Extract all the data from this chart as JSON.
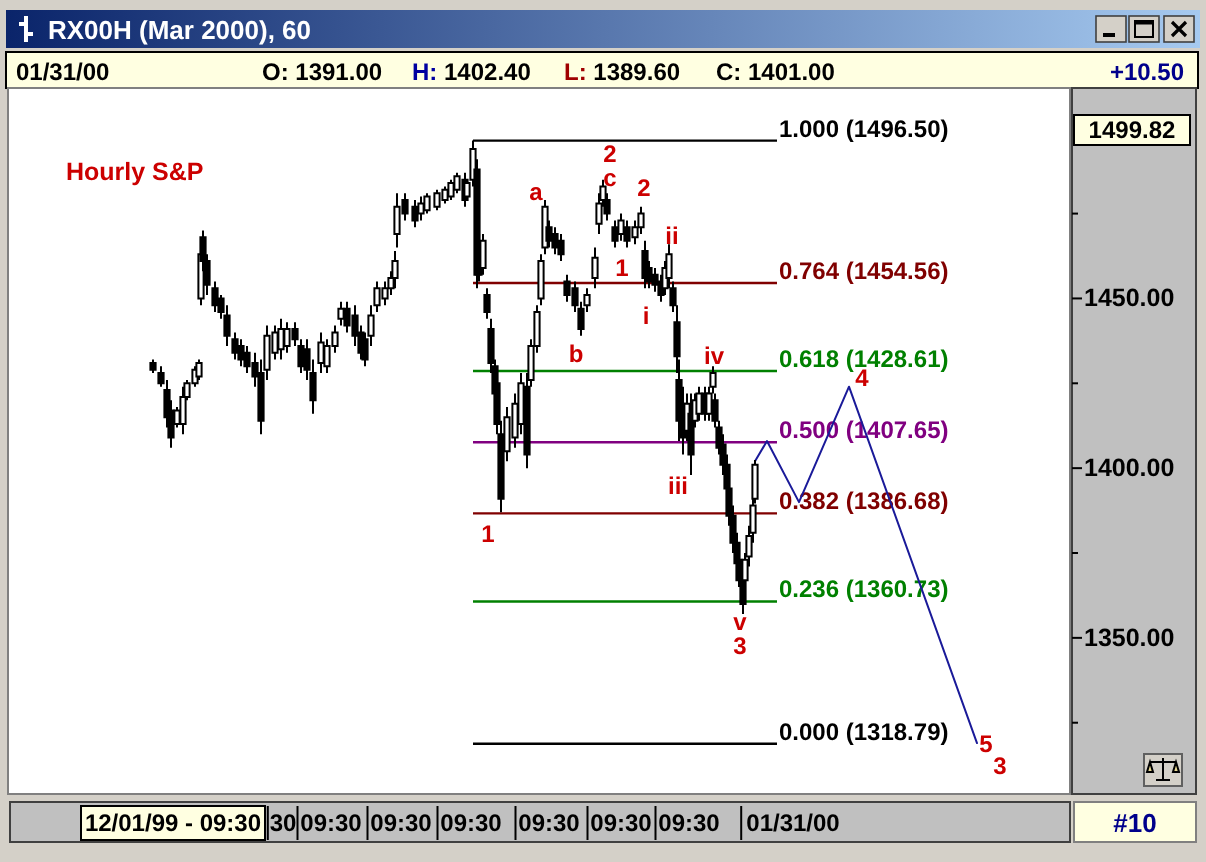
{
  "chart_data": {
    "type": "candlestick",
    "title": "RX00H (Mar 2000), 60",
    "subtitle": "Hourly S&P",
    "color": "#000000",
    "categories": [
      null,
      null,
      null,
      null,
      null,
      null,
      null,
      null,
      null,
      null,
      null,
      null,
      null,
      null,
      null,
      null,
      null,
      null,
      null,
      null,
      null,
      null,
      null,
      null,
      null,
      null,
      null,
      null,
      null,
      null,
      null,
      null,
      null,
      null,
      null,
      null,
      null,
      null,
      null,
      null,
      null,
      null,
      null,
      null,
      null,
      null,
      null,
      null,
      null,
      null,
      null,
      null,
      null,
      null,
      null,
      null,
      null,
      null,
      null,
      null,
      null,
      null,
      null,
      null,
      null,
      null,
      null,
      null,
      null,
      null,
      null,
      null,
      null,
      null,
      null,
      null,
      null,
      null,
      null,
      null,
      null,
      "12/01/99 - 09:30",
      null,
      null,
      null,
      null,
      null,
      null,
      null,
      null,
      null,
      null,
      null,
      null,
      null,
      null,
      null,
      null,
      null,
      null,
      null,
      null,
      null,
      null,
      null,
      null,
      null,
      null,
      null,
      null,
      null,
      null,
      null,
      null,
      null,
      null,
      null,
      null,
      null,
      null,
      null,
      null,
      null,
      null,
      null,
      null,
      null,
      null,
      null,
      null,
      null,
      null,
      null,
      null,
      null,
      null,
      "30",
      null,
      null,
      null,
      null,
      null,
      null,
      null,
      null,
      null,
      null,
      null,
      null,
      null,
      null,
      null,
      null,
      null,
      null,
      null,
      null,
      null,
      null,
      null,
      "09:30",
      null,
      null,
      null,
      null,
      null,
      null,
      null,
      null,
      null,
      null,
      null,
      null,
      null,
      null,
      null,
      null,
      null,
      null,
      null,
      null,
      null,
      null,
      null,
      null,
      null,
      null,
      null,
      null,
      null,
      null,
      null,
      null,
      null,
      null,
      "09:30",
      null,
      null,
      null,
      null,
      null,
      null,
      null,
      null,
      null,
      null,
      null,
      null,
      null,
      null,
      null,
      null,
      null,
      null,
      null,
      null,
      null,
      null,
      null,
      null,
      null,
      null,
      null,
      null,
      null,
      null,
      null,
      null,
      null,
      null,
      "09:30",
      null,
      null,
      null,
      null,
      null,
      null,
      null,
      null,
      null,
      null,
      null,
      null,
      null,
      null,
      null,
      null,
      null,
      null,
      null,
      null,
      null,
      null,
      null,
      null,
      null,
      null,
      null,
      null,
      null,
      null,
      null,
      null,
      null,
      null,
      null,
      null,
      null,
      null,
      "09:30",
      null,
      null,
      null,
      null,
      null,
      null,
      null,
      null,
      null,
      null,
      null,
      null,
      null,
      null,
      null,
      null,
      null,
      null,
      null,
      null,
      null,
      null,
      null,
      null,
      null,
      null,
      null,
      null,
      null,
      null,
      null,
      null,
      null,
      null,
      null,
      "09:30",
      null,
      null,
      null,
      null,
      null,
      null,
      null,
      null,
      null,
      null,
      null,
      null,
      null,
      null,
      null,
      null,
      null,
      null,
      null,
      null,
      null,
      null,
      null,
      null,
      null,
      null,
      null,
      null,
      null,
      null,
      null,
      null,
      null,
      "09:30",
      null,
      null,
      null,
      null,
      null,
      null,
      null,
      null,
      null,
      null,
      null,
      null,
      null,
      null,
      null,
      null,
      null,
      null,
      null,
      null,
      null,
      null,
      null,
      null,
      null,
      null,
      null,
      null,
      null,
      null,
      null,
      null,
      null,
      null,
      null,
      null,
      null,
      null,
      null,
      null,
      null,
      null,
      null,
      null,
      null,
      null,
      null,
      null,
      null,
      null,
      null,
      "01/31/00",
      null,
      null,
      null,
      null,
      null,
      null,
      null,
      null,
      null,
      null,
      null,
      null,
      null,
      null,
      null,
      null,
      null,
      null,
      null,
      null,
      null,
      null,
      null,
      null,
      null,
      null,
      null,
      null,
      null,
      null,
      null,
      null,
      null,
      null,
      null,
      null,
      null,
      null,
      null,
      null,
      null,
      null,
      null,
      null,
      null,
      null,
      null,
      null,
      null,
      null,
      null,
      null,
      null,
      null,
      null,
      null,
      null,
      null,
      null,
      null,
      null,
      null,
      null,
      null,
      null,
      null,
      null,
      null,
      null,
      null,
      null,
      null,
      null,
      null,
      null,
      null,
      null,
      null,
      null,
      null,
      null,
      null,
      null,
      null,
      null,
      null,
      null,
      null,
      null,
      null,
      null,
      null,
      null,
      null,
      null,
      null,
      null,
      null,
      null,
      null,
      null,
      null,
      null,
      null,
      null,
      null,
      null,
      null,
      null,
      null,
      null,
      null,
      null,
      null,
      null,
      null,
      null,
      null,
      null,
      null,
      null,
      null,
      null,
      null,
      null,
      null,
      null,
      null,
      null,
      null,
      null,
      null,
      null,
      null,
      null,
      null,
      null,
      null
    ],
    "ohlc": [
      null,
      null,
      null,
      null,
      null,
      null,
      null,
      null,
      null,
      null,
      null,
      null,
      null,
      null,
      null,
      null,
      null,
      null,
      null,
      null,
      null,
      null,
      null,
      null,
      null,
      null,
      null,
      null,
      null,
      null,
      null,
      null,
      null,
      null,
      null,
      null,
      null,
      null,
      null,
      null,
      null,
      null,
      null,
      null,
      null,
      null,
      null,
      null,
      null,
      null,
      null,
      null,
      null,
      null,
      null,
      null,
      null,
      null,
      null,
      null,
      null,
      null,
      null,
      null,
      null,
      null,
      null,
      null,
      null,
      null,
      null,
      [
        1431,
        1432,
        1428,
        1429
      ],
      null,
      null,
      null,
      [
        1428,
        1430,
        1424,
        1425
      ],
      null,
      null,
      [
        1423,
        1426,
        1412,
        1415
      ],
      null,
      [
        1417,
        1420,
        1406,
        1409
      ],
      null,
      null,
      [
        1413,
        1418,
        1412,
        1417
      ],
      null,
      null,
      [
        1413,
        1424,
        1410,
        1421
      ],
      null,
      [
        1421,
        1426,
        1420,
        1425
      ],
      null,
      null,
      null,
      [
        1425,
        1430,
        1424,
        1429
      ],
      null,
      [
        1427,
        1432,
        1426,
        1431
      ],
      [
        1450,
        1465,
        1448,
        1463
      ],
      [
        1468,
        1470,
        1458,
        1461
      ],
      null,
      [
        1461,
        1463,
        1451,
        1454
      ],
      null,
      null,
      null,
      [
        1453,
        1455,
        1446,
        1448
      ],
      null,
      null,
      [
        1450,
        1451,
        1444,
        1446
      ],
      null,
      null,
      [
        1445,
        1448,
        1436,
        1439
      ],
      null,
      null,
      null,
      [
        1438,
        1440,
        1432,
        1434
      ],
      null,
      null,
      [
        1436,
        1438,
        1430,
        1432
      ],
      null,
      null,
      [
        1434,
        1436,
        1428,
        1430
      ],
      null,
      null,
      null,
      [
        1431,
        1434,
        1424,
        1427
      ],
      null,
      null,
      [
        1428,
        1432,
        1410,
        1414
      ],
      null,
      null,
      [
        1429,
        1442,
        1426,
        1439
      ],
      null,
      null,
      null,
      [
        1434,
        1442,
        1432,
        1440
      ],
      null,
      null,
      [
        1435,
        1444,
        1432,
        1441
      ],
      null,
      null,
      [
        1436,
        1443,
        1434,
        1441
      ],
      null,
      null,
      null,
      [
        1441,
        1443,
        1436,
        1438
      ],
      null,
      null,
      [
        1436,
        1438,
        1428,
        1430
      ],
      null,
      null,
      [
        1435,
        1438,
        1426,
        1429
      ],
      null,
      null,
      [
        1428,
        1432,
        1416,
        1420
      ],
      null,
      null,
      null,
      [
        1431,
        1440,
        1428,
        1437
      ],
      null,
      null,
      [
        1430,
        1438,
        1428,
        1436
      ],
      null,
      null,
      null,
      [
        1436,
        1442,
        1434,
        1440
      ],
      null,
      null,
      [
        1444,
        1449,
        1442,
        1447
      ],
      null,
      null,
      [
        1447,
        1449,
        1440,
        1442
      ],
      null,
      null,
      null,
      [
        1445,
        1448,
        1436,
        1439
      ],
      null,
      null,
      [
        1440,
        1442,
        1432,
        1434
      ],
      null,
      [
        1438,
        1440,
        1430,
        1432
      ],
      null,
      null,
      [
        1439,
        1448,
        1436,
        1445
      ],
      null,
      null,
      [
        1448,
        1455,
        1446,
        1453
      ],
      null,
      null,
      null,
      [
        1450,
        1455,
        1448,
        1453
      ],
      null,
      null,
      [
        1453,
        1458,
        1451,
        1456
      ],
      null,
      [
        1456,
        1464,
        1453,
        1461
      ],
      [
        1469,
        1481,
        1465,
        1477
      ],
      null,
      null,
      null,
      [
        1479,
        1481,
        1473,
        1475
      ],
      null,
      null,
      null,
      null,
      [
        1477,
        1479,
        1471,
        1473
      ],
      null,
      null,
      [
        1475,
        1480,
        1473,
        1478
      ],
      null,
      null,
      [
        1476,
        1481,
        1475,
        1480
      ],
      null,
      null,
      null,
      null,
      [
        1477,
        1482,
        1476,
        1481
      ],
      null,
      null,
      null,
      [
        1479,
        1483,
        1478,
        1482
      ],
      null,
      null,
      [
        1480,
        1485,
        1479,
        1484
      ],
      null,
      null,
      [
        1482,
        1487,
        1481,
        1486
      ],
      null,
      null,
      null,
      [
        1485,
        1487,
        1477,
        1479
      ],
      [
        1480,
        1485,
        1479,
        1484
      ],
      null,
      null,
      [
        1485,
        1496.5,
        1483,
        1494
      ],
      null,
      [
        1488,
        1491,
        1453,
        1457
      ],
      [
        1462,
        1465,
        1455,
        1457
      ],
      null,
      [
        1459,
        1469,
        1457,
        1467
      ],
      null,
      [
        1451,
        1453,
        1444,
        1446
      ],
      null,
      [
        1441,
        1444,
        1428,
        1431
      ],
      null,
      [
        1430,
        1432,
        1420,
        1422
      ],
      [
        1425,
        1428,
        1410,
        1413
      ],
      null,
      [
        1410,
        1414,
        1387,
        1391
      ],
      null,
      null,
      [
        1405,
        1418,
        1402,
        1415
      ],
      null,
      null,
      null,
      [
        1409,
        1422,
        1406,
        1419
      ],
      null,
      null,
      [
        1413,
        1428,
        1410,
        1425
      ],
      null,
      null,
      [
        1424,
        1428,
        1400,
        1404
      ],
      null,
      [
        1426,
        1438,
        1424,
        1436
      ],
      null,
      null,
      [
        1436,
        1448,
        1434,
        1446
      ],
      null,
      [
        1450,
        1463,
        1448,
        1461
      ],
      null,
      [
        1465,
        1479,
        1463,
        1477
      ],
      null,
      [
        1471,
        1473,
        1465,
        1467
      ],
      null,
      null,
      [
        1469,
        1471,
        1463,
        1465
      ],
      null,
      null,
      [
        1467,
        1469,
        1461,
        1463
      ],
      null,
      null,
      [
        1455,
        1457,
        1449,
        1451
      ],
      null,
      null,
      null,
      [
        1453,
        1455,
        1446,
        1448
      ],
      null,
      null,
      [
        1447,
        1449,
        1439,
        1441
      ],
      null,
      null,
      [
        1448,
        1453,
        1446,
        1451
      ],
      null,
      null,
      null,
      [
        1456,
        1465,
        1453,
        1462
      ],
      null,
      [
        1472,
        1481,
        1469,
        1478
      ],
      null,
      [
        1479,
        1485,
        1477,
        1483
      ],
      null,
      [
        1479,
        1481,
        1473,
        1475
      ],
      null,
      null,
      null,
      [
        1471,
        1473,
        1465,
        1467
      ],
      null,
      null,
      [
        1469,
        1475,
        1467,
        1473
      ],
      null,
      null,
      [
        1471,
        1473,
        1465,
        1467
      ],
      null,
      null,
      null,
      [
        1468,
        1473,
        1466,
        1471
      ],
      null,
      null,
      [
        1471,
        1477,
        1469,
        1475
      ],
      null,
      [
        1464,
        1467,
        1453,
        1456
      ],
      null,
      [
        1459,
        1461,
        1453,
        1455
      ],
      null,
      null,
      [
        1457,
        1459,
        1452,
        1454
      ],
      null,
      null,
      [
        1455,
        1457,
        1449,
        1451
      ],
      null,
      [
        1453,
        1461,
        1451,
        1459
      ],
      null,
      [
        1456,
        1466,
        1453,
        1463
      ],
      null,
      [
        1453,
        1455,
        1446,
        1448
      ],
      null,
      [
        1443,
        1448,
        1428,
        1433
      ],
      [
        1426,
        1432,
        1408,
        1414
      ],
      null,
      [
        1419,
        1424,
        1404,
        1409
      ],
      null,
      [
        1411,
        1422,
        1408,
        1419
      ],
      null,
      [
        1416,
        1422,
        1398,
        1404
      ],
      null,
      [
        1414,
        1422,
        1412,
        1420
      ],
      null,
      [
        1416,
        1424,
        1414,
        1422
      ],
      null,
      null,
      [
        1422,
        1424,
        1414,
        1416
      ],
      null,
      [
        1416,
        1424,
        1414,
        1422
      ],
      null,
      [
        1424,
        1430,
        1422,
        1428
      ],
      [
        1420,
        1422,
        1412,
        1414
      ],
      null,
      [
        1412,
        1414,
        1404,
        1406
      ],
      null,
      [
        1407,
        1410,
        1398,
        1401
      ],
      null,
      [
        1401,
        1404,
        1391,
        1394
      ],
      [
        1394,
        1397,
        1383,
        1386
      ],
      null,
      [
        1386,
        1389,
        1375,
        1378
      ],
      null,
      [
        1378,
        1381,
        1369,
        1372
      ],
      [
        1373,
        1375,
        1365,
        1367
      ],
      null,
      [
        1368,
        1371,
        1357,
        1360
      ],
      [
        1367,
        1375,
        1365,
        1373
      ],
      null,
      [
        1374,
        1383,
        1371,
        1380
      ],
      null,
      [
        1381,
        1392,
        1378,
        1389
      ],
      [
        1391,
        1402.4,
        1389.6,
        1401
      ],
      null,
      null,
      null,
      null,
      null,
      null,
      null,
      null,
      null,
      null,
      null,
      null,
      null,
      null,
      null,
      null,
      null,
      null,
      null,
      null,
      null,
      null,
      null,
      null,
      null,
      null,
      null,
      null,
      null,
      null,
      null,
      null,
      null,
      null,
      null,
      null,
      null,
      null,
      null,
      null,
      null,
      null,
      null,
      null,
      null,
      null,
      null,
      null,
      null,
      null,
      null,
      null,
      null,
      null,
      null,
      null,
      null,
      null,
      null,
      null,
      null,
      null,
      null,
      null,
      null,
      null,
      null,
      null,
      null,
      null,
      null,
      null,
      null,
      null,
      null,
      null,
      null,
      null,
      null,
      null,
      null,
      null,
      null,
      null,
      null,
      null,
      null,
      null,
      null,
      null,
      null,
      null,
      null,
      null,
      null,
      null,
      null,
      null,
      null,
      null,
      null,
      null,
      null,
      null,
      null,
      null,
      null,
      null,
      null,
      null,
      null,
      null,
      null,
      null,
      null,
      null,
      null,
      null,
      null,
      null,
      null,
      null,
      null,
      null,
      null,
      null,
      null,
      null,
      null,
      null,
      null,
      null,
      null,
      null,
      null,
      null,
      null,
      null,
      null,
      null,
      null,
      null,
      null,
      null,
      null,
      null,
      null,
      null,
      null,
      null,
      null,
      null,
      null,
      null,
      null,
      null,
      null
    ],
    "series": [
      {
        "type": "line",
        "color": "#1a1a99",
        "values": [
          null,
          null,
          null,
          null,
          null,
          null,
          null,
          null,
          null,
          null,
          null,
          null,
          null,
          null,
          null,
          null,
          null,
          null,
          null,
          null,
          null,
          null,
          null,
          null,
          null,
          null,
          null,
          null,
          null,
          null,
          null,
          null,
          null,
          null,
          null,
          null,
          null,
          null,
          null,
          null,
          null,
          null,
          null,
          null,
          null,
          null,
          null,
          null,
          null,
          null,
          null,
          null,
          null,
          null,
          null,
          null,
          null,
          null,
          null,
          null,
          null,
          null,
          null,
          null,
          null,
          null,
          null,
          null,
          null,
          null,
          null,
          null,
          null,
          null,
          null,
          null,
          null,
          null,
          null,
          null,
          null,
          null,
          null,
          null,
          null,
          null,
          null,
          null,
          null,
          null,
          null,
          null,
          null,
          null,
          null,
          null,
          null,
          null,
          null,
          null,
          null,
          null,
          null,
          null,
          null,
          null,
          null,
          null,
          null,
          null,
          null,
          null,
          null,
          null,
          null,
          null,
          null,
          null,
          null,
          null,
          null,
          null,
          null,
          null,
          null,
          null,
          null,
          null,
          null,
          null,
          null,
          null,
          null,
          null,
          null,
          null,
          null,
          null,
          null,
          null,
          null,
          null,
          null,
          null,
          null,
          null,
          null,
          null,
          null,
          null,
          null,
          null,
          null,
          null,
          null,
          null,
          null,
          null,
          null,
          null,
          null,
          null,
          null,
          null,
          null,
          null,
          null,
          null,
          null,
          null,
          null,
          null,
          null,
          null,
          null,
          null,
          null,
          null,
          null,
          null,
          null,
          null,
          null,
          null,
          null,
          null,
          null,
          null,
          null,
          null,
          null,
          null,
          null,
          null,
          null,
          null,
          null,
          null,
          null,
          null,
          null,
          null,
          null,
          null,
          null,
          null,
          null,
          null,
          null,
          null,
          null,
          null,
          null,
          null,
          null,
          null,
          null,
          null,
          null,
          null,
          null,
          null,
          null,
          null,
          null,
          null,
          null,
          null,
          null,
          null,
          null,
          null,
          null,
          null,
          null,
          null,
          null,
          null,
          null,
          null,
          null,
          null,
          null,
          null,
          null,
          null,
          null,
          null,
          null,
          null,
          null,
          null,
          null,
          null,
          null,
          null,
          null,
          null,
          null,
          null,
          null,
          null,
          null,
          null,
          null,
          null,
          null,
          null,
          null,
          null,
          null,
          null,
          null,
          null,
          null,
          null,
          null,
          null,
          null,
          null,
          null,
          null,
          null,
          null,
          null,
          null,
          null,
          null,
          null,
          null,
          null,
          null,
          null,
          null,
          null,
          null,
          null,
          null,
          null,
          null,
          null,
          null,
          null,
          null,
          null,
          null,
          null,
          null,
          null,
          null,
          null,
          null,
          null,
          null,
          null,
          null,
          null,
          null,
          null,
          null,
          null,
          null,
          null,
          null,
          null,
          null,
          null,
          null,
          null,
          null,
          null,
          null,
          null,
          null,
          null,
          null,
          null,
          null,
          null,
          null,
          null,
          null,
          null,
          null,
          null,
          null,
          null,
          null,
          null,
          null,
          null,
          null,
          null,
          null,
          null,
          null,
          null,
          null,
          null,
          null,
          null,
          null,
          null,
          null,
          null,
          null,
          null,
          null,
          null,
          null,
          null,
          null,
          1402,
          null,
          null,
          null,
          null,
          null,
          1408,
          null,
          null,
          null,
          null,
          null,
          null,
          null,
          null,
          null,
          null,
          null,
          null,
          null,
          null,
          null,
          1390,
          null,
          null,
          null,
          null,
          null,
          null,
          null,
          null,
          null,
          null,
          null,
          null,
          null,
          null,
          null,
          null,
          null,
          null,
          null,
          null,
          null,
          null,
          null,
          null,
          1424,
          null,
          null,
          null,
          null,
          null,
          null,
          null,
          null,
          null,
          null,
          null,
          null,
          null,
          null,
          null,
          null,
          null,
          null,
          null,
          null,
          null,
          null,
          null,
          null,
          null,
          null,
          null,
          null,
          null,
          null,
          null,
          null,
          null,
          null,
          null,
          null,
          null,
          null,
          null,
          null,
          null,
          null,
          null,
          null,
          null,
          null,
          null,
          null,
          null,
          null,
          null,
          null,
          null,
          null,
          null,
          null,
          null,
          null,
          null,
          null,
          null,
          null,
          null,
          1319,
          null,
          null,
          null,
          null,
          null,
          null,
          null,
          null,
          null,
          null,
          null,
          null,
          null,
          null,
          null,
          null,
          null,
          null,
          null,
          null,
          null,
          null,
          null,
          null,
          null,
          null,
          null,
          null,
          null,
          null,
          null,
          null,
          null,
          null,
          null,
          null,
          null,
          null,
          null,
          null,
          null,
          null,
          null,
          null,
          null,
          null
        ]
      }
    ],
    "ylim": [
      1304,
      1512
    ],
    "yticks": [
      {
        "value": 1325,
        "label": null
      },
      {
        "value": 1350,
        "label": "1350.00"
      },
      {
        "value": 1375,
        "label": null
      },
      {
        "value": 1400,
        "label": "1400.00"
      },
      {
        "value": 1425,
        "label": null
      },
      {
        "value": 1450,
        "label": "1450.00"
      },
      {
        "value": 1475,
        "label": null
      }
    ],
    "ref_lines": [
      {
        "axis": "y",
        "value": 1496.5,
        "label": "1.000 (1496.50)",
        "color": "#000000"
      },
      {
        "axis": "y",
        "value": 1454.56,
        "label": "0.764 (1454.56)",
        "color": "#800000"
      },
      {
        "axis": "y",
        "value": 1428.61,
        "label": "0.618 (1428.61)",
        "color": "#008000"
      },
      {
        "axis": "y",
        "value": 1407.65,
        "label": "0.500 (1407.65)",
        "color": "#800080"
      },
      {
        "axis": "y",
        "value": 1386.68,
        "label": "0.382 (1386.68)",
        "color": "#800000"
      },
      {
        "axis": "y",
        "value": 1360.73,
        "label": "0.236 (1360.73)",
        "color": "#008000"
      },
      {
        "axis": "y",
        "value": 1318.79,
        "label": "0.000 (1318.79)",
        "color": "#000000"
      }
    ],
    "annotations": [
      "1",
      "a",
      "b",
      "2",
      "c",
      "2",
      "1",
      "i",
      "ii",
      "iii",
      "iv",
      "v",
      "3",
      "4",
      "5",
      "3",
      "01/31/00",
      "O: 1391.00",
      "H: 1402.40",
      "L: 1389.60",
      "C: 1401.00",
      "+10.50",
      "#10",
      "1499.82"
    ]
  }
}
